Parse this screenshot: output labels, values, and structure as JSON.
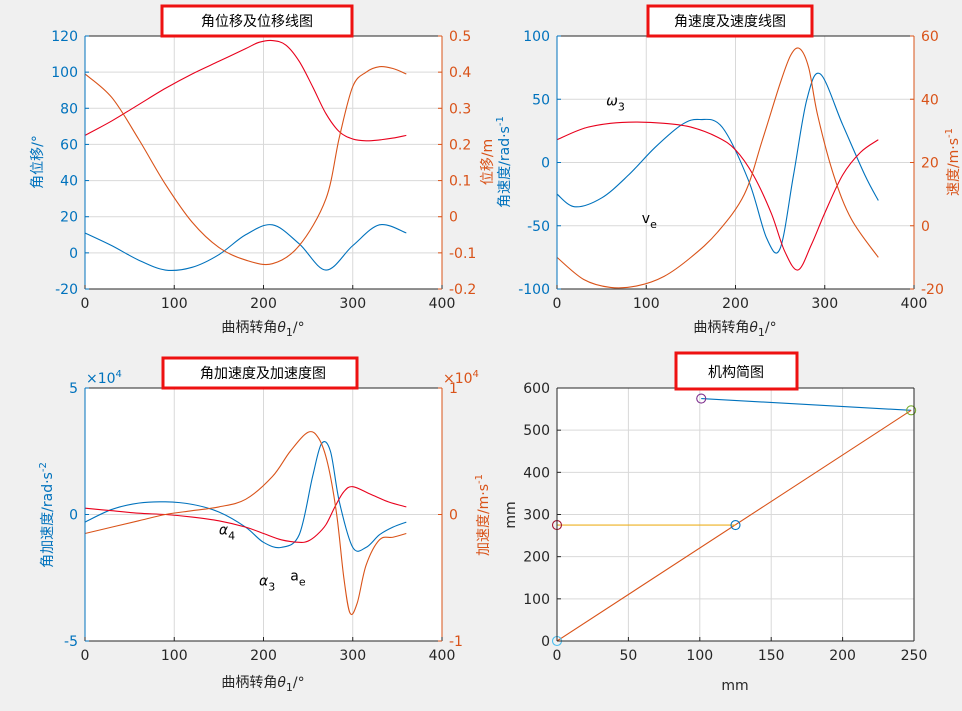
{
  "colors": {
    "blue": "#0072BD",
    "orange": "#D95319",
    "red": "#E8001C",
    "yellow": "#EDB120",
    "purple": "#7E2F8E",
    "green": "#77AC30",
    "darkred": "#A2142F",
    "cyan": "#4DBEEE",
    "box": "#EE1111",
    "grid": "#d9d9d9",
    "axis": "#262626",
    "bg": "#f0f0f0"
  },
  "chart_data": [
    {
      "type": "line",
      "title": "角位移及位移线图",
      "xlabel": "曲柄转角θ1/°",
      "xlim": [
        0,
        400
      ],
      "xticks": [
        0,
        100,
        200,
        300,
        400
      ],
      "ylabel_left": "角位移/°",
      "ylim_left": [
        -20,
        120
      ],
      "yticks_left": [
        -20,
        0,
        20,
        40,
        60,
        80,
        100,
        120
      ],
      "ylabel_right": "位移/m",
      "ylim_right": [
        -0.2,
        0.5
      ],
      "yticks_right": [
        -0.2,
        -0.1,
        0,
        0.1,
        0.2,
        0.3,
        0.4,
        0.5
      ],
      "grid": true,
      "series": [
        {
          "color": "blue",
          "axis": "left",
          "x": [
            0,
            30,
            60,
            90,
            120,
            150,
            180,
            210,
            240,
            270,
            300,
            330,
            360
          ],
          "y": [
            11,
            4,
            -4,
            -9.5,
            -8,
            -1,
            10,
            15.5,
            5,
            -9.5,
            4,
            15.5,
            11
          ]
        },
        {
          "color": "red",
          "axis": "left",
          "x": [
            0,
            30,
            60,
            90,
            120,
            150,
            180,
            195,
            210,
            225,
            240,
            255,
            270,
            285,
            300,
            315,
            330,
            345,
            360
          ],
          "y": [
            65,
            73,
            82,
            91,
            99,
            106,
            113,
            116.5,
            117.5,
            115,
            106,
            92,
            77,
            67,
            63,
            62,
            62.5,
            63.5,
            65
          ]
        },
        {
          "color": "orange",
          "axis": "right",
          "x": [
            0,
            30,
            60,
            90,
            120,
            150,
            180,
            210,
            240,
            270,
            285,
            300,
            315,
            330,
            345,
            360
          ],
          "y": [
            0.395,
            0.33,
            0.215,
            0.09,
            -0.015,
            -0.085,
            -0.12,
            -0.13,
            -0.08,
            0.05,
            0.22,
            0.36,
            0.4,
            0.415,
            0.41,
            0.395
          ]
        }
      ]
    },
    {
      "type": "line",
      "title": "角速度及速度线图",
      "xlabel": "曲柄转角θ1/°",
      "xlim": [
        0,
        400
      ],
      "xticks": [
        0,
        100,
        200,
        300,
        400
      ],
      "ylabel_left": "角速度/rad·s-1",
      "ylim_left": [
        -100,
        100
      ],
      "yticks_left": [
        -100,
        -50,
        0,
        50,
        100
      ],
      "ylabel_right": "速度/m·s-1",
      "ylim_right": [
        -20,
        60
      ],
      "yticks_right": [
        -20,
        0,
        20,
        40,
        60
      ],
      "grid": true,
      "annotations": [
        {
          "text": "ω",
          "sub": "3",
          "x": 55,
          "y": 45
        },
        {
          "text": "v",
          "sub": "e",
          "x": 95,
          "y": -48
        }
      ],
      "series": [
        {
          "color": "blue",
          "axis": "left",
          "x": [
            0,
            20,
            50,
            80,
            110,
            140,
            160,
            185,
            215,
            235,
            250,
            265,
            280,
            295,
            320,
            345,
            360
          ],
          "y": [
            -25,
            -35,
            -28,
            -10,
            12,
            30,
            34,
            28,
            -15,
            -60,
            -68,
            -10,
            50,
            70,
            30,
            -10,
            -30
          ]
        },
        {
          "color": "red",
          "axis": "left",
          "x": [
            0,
            30,
            60,
            90,
            120,
            150,
            180,
            200,
            220,
            240,
            255,
            270,
            285,
            300,
            320,
            340,
            360
          ],
          "y": [
            18,
            27,
            31,
            32,
            31,
            28,
            20,
            10,
            -10,
            -40,
            -70,
            -85,
            -65,
            -40,
            -10,
            8,
            18
          ]
        },
        {
          "color": "orange",
          "axis": "right",
          "x": [
            0,
            30,
            60,
            90,
            120,
            150,
            180,
            210,
            230,
            250,
            262,
            272,
            282,
            292,
            310,
            330,
            360
          ],
          "y": [
            -10,
            -17,
            -19.5,
            -19,
            -16,
            -10,
            -2,
            10,
            27,
            45,
            54,
            56,
            50,
            35,
            16,
            2,
            -10
          ]
        }
      ]
    },
    {
      "type": "line",
      "title": "角加速度及加速度图",
      "xlabel": "曲柄转角θ1/°",
      "xlim": [
        0,
        400
      ],
      "xticks": [
        0,
        100,
        200,
        300,
        400
      ],
      "ylabel_left": "角加速度/rad·s-2",
      "ylim_left": [
        -5,
        5
      ],
      "yticks_left": [
        -5,
        0,
        5
      ],
      "left_exponent": "×10^4",
      "ylabel_right": "加速度/m·s-1",
      "ylim_right": [
        -1,
        1
      ],
      "yticks_right": [
        -1,
        0,
        1
      ],
      "right_exponent": "×10^4",
      "grid": true,
      "annotations": [
        {
          "text": "α",
          "sub": "4",
          "x": 150,
          "y": -0.8
        },
        {
          "text": "α",
          "sub": "3",
          "x": 195,
          "y": -2.8
        },
        {
          "text": "a",
          "sub": "e",
          "x": 230,
          "y": -2.6
        }
      ],
      "series": [
        {
          "color": "blue",
          "axis": "left",
          "x": [
            0,
            30,
            60,
            90,
            120,
            150,
            180,
            200,
            220,
            240,
            255,
            265,
            275,
            285,
            300,
            315,
            330,
            345,
            360
          ],
          "y": [
            -0.3,
            0.2,
            0.45,
            0.5,
            0.4,
            0.1,
            -0.5,
            -1.1,
            -1.3,
            -0.8,
            1.5,
            2.8,
            2.5,
            0.5,
            -1.3,
            -1.3,
            -0.8,
            -0.5,
            -0.3
          ]
        },
        {
          "color": "red",
          "axis": "left",
          "x": [
            0,
            30,
            60,
            90,
            120,
            150,
            180,
            200,
            220,
            240,
            250,
            260,
            270,
            280,
            290,
            300,
            320,
            340,
            360
          ],
          "y": [
            0.25,
            0.15,
            0.05,
            0,
            -0.1,
            -0.25,
            -0.5,
            -0.75,
            -1,
            -1.1,
            -1.05,
            -0.8,
            -0.4,
            0.3,
            0.9,
            1.1,
            0.8,
            0.5,
            0.3
          ]
        },
        {
          "color": "orange",
          "axis": "right",
          "x": [
            0,
            30,
            60,
            90,
            120,
            150,
            180,
            210,
            230,
            250,
            262,
            272,
            282,
            290,
            297,
            305,
            315,
            330,
            345,
            360
          ],
          "y": [
            -0.15,
            -0.1,
            -0.05,
            0,
            0.03,
            0.06,
            0.12,
            0.3,
            0.5,
            0.65,
            0.6,
            0.4,
            0,
            -0.5,
            -0.78,
            -0.7,
            -0.4,
            -0.2,
            -0.18,
            -0.15
          ]
        }
      ]
    },
    {
      "type": "scatter",
      "title": "机构简图",
      "xlabel": "mm",
      "ylabel": "mm",
      "xlim": [
        0,
        250
      ],
      "xticks": [
        0,
        50,
        100,
        150,
        200,
        250
      ],
      "ylim": [
        0,
        600
      ],
      "yticks": [
        0,
        100,
        200,
        300,
        400,
        500,
        600
      ],
      "grid": true,
      "segments": [
        {
          "color": "blue",
          "x": [
            101,
            248
          ],
          "y": [
            575,
            547
          ]
        },
        {
          "color": "orange",
          "x": [
            0,
            248
          ],
          "y": [
            0,
            547
          ]
        },
        {
          "color": "yellow",
          "x": [
            0,
            125
          ],
          "y": [
            275,
            275
          ]
        }
      ],
      "points": [
        {
          "color": "purple",
          "x": 101,
          "y": 575
        },
        {
          "color": "green",
          "x": 248,
          "y": 547
        },
        {
          "color": "blue",
          "x": 125,
          "y": 275
        },
        {
          "color": "darkred",
          "x": 0,
          "y": 275
        },
        {
          "color": "cyan",
          "x": 0,
          "y": 0
        }
      ]
    }
  ]
}
